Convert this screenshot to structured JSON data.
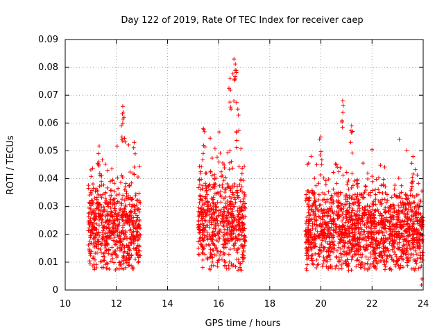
{
  "chart_data": {
    "type": "scatter",
    "title": "Day 122 of 2019, Rate Of TEC Index for receiver caep",
    "xlabel": "GPS time / hours",
    "ylabel": "ROTI / TECUs",
    "xlim": [
      10,
      24
    ],
    "ylim": [
      0,
      0.09
    ],
    "xticks": [
      10,
      12,
      14,
      16,
      18,
      20,
      22,
      24
    ],
    "yticks": [
      0,
      0.01,
      0.02,
      0.03,
      0.04,
      0.05,
      0.06,
      0.07,
      0.08,
      0.09
    ],
    "xtick_labels": [
      "10",
      "12",
      "14",
      "16",
      "18",
      "20",
      "22",
      "24"
    ],
    "ytick_labels": [
      "0",
      "0.01",
      "0.02",
      "0.03",
      "0.04",
      "0.05",
      "0.06",
      "0.07",
      "0.08",
      "0.09"
    ],
    "grid": true,
    "marker": "+",
    "color": "#ff0000",
    "series": [
      {
        "name": "ROTI",
        "segments": [
          {
            "t_start": 10.9,
            "t_end": 12.95,
            "base": 0.021,
            "spread": 0.012,
            "peaks": [
              {
                "t": 12.25,
                "value": 0.066
              },
              {
                "t": 12.3,
                "value": 0.062
              },
              {
                "t": 11.3,
                "value": 0.049
              },
              {
                "t": 12.7,
                "value": 0.053
              }
            ]
          },
          {
            "t_start": 15.2,
            "t_end": 17.05,
            "base": 0.024,
            "spread": 0.014,
            "peaks": [
              {
                "t": 16.6,
                "value": 0.083
              },
              {
                "t": 16.65,
                "value": 0.079
              },
              {
                "t": 16.45,
                "value": 0.076
              },
              {
                "t": 16.75,
                "value": 0.065
              },
              {
                "t": 15.4,
                "value": 0.058
              }
            ]
          },
          {
            "t_start": 19.4,
            "t_end": 24.0,
            "base": 0.021,
            "spread": 0.012,
            "peaks": [
              {
                "t": 20.85,
                "value": 0.068
              },
              {
                "t": 21.2,
                "value": 0.059
              },
              {
                "t": 20.0,
                "value": 0.055
              },
              {
                "t": 23.6,
                "value": 0.048
              },
              {
                "t": 23.95,
                "value": 0.004
              }
            ]
          }
        ]
      }
    ]
  }
}
